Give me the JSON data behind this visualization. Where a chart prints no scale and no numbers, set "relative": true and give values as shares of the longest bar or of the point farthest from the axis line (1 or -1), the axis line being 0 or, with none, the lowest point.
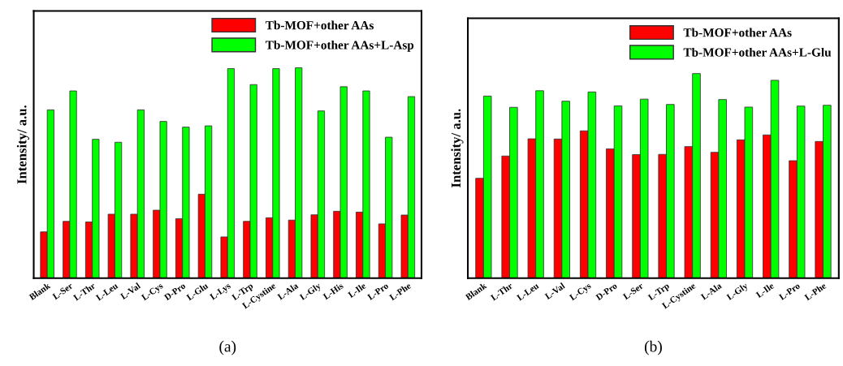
{
  "chart_data": [
    {
      "type": "bar",
      "relative": true,
      "ylabel": "Intensity/ a.u.",
      "legend": "top right",
      "annotations": [
        "(a)"
      ],
      "categories": [
        "Blank",
        "L-Ser",
        "L-Thr",
        "L-Leu",
        "L-Val",
        "L-Cys",
        "D-Pro",
        "L-Glu",
        "L-Lys",
        "L-Trp",
        "L-Cystine",
        "L-Ala",
        "L-Gly",
        "L-His",
        "L-Ile",
        "L-Pro",
        "L-Phe"
      ],
      "series": [
        {
          "name": "Tb-MOF+other AAs",
          "color": "#ff0000",
          "values": [
            0.22,
            0.27,
            0.267,
            0.304,
            0.304,
            0.323,
            0.283,
            0.399,
            0.196,
            0.27,
            0.287,
            0.276,
            0.301,
            0.318,
            0.314,
            0.258,
            0.3
          ]
        },
        {
          "name": "Tb-MOF+other AAs+L-Asp",
          "color": "#00ff00",
          "values": [
            0.8,
            0.89,
            0.66,
            0.646,
            0.8,
            0.745,
            0.718,
            0.724,
            0.996,
            0.92,
            0.996,
            1,
            0.795,
            0.91,
            0.89,
            0.67,
            0.863
          ]
        }
      ]
    },
    {
      "type": "bar",
      "relative": true,
      "ylabel": "Intensity/ a.u.",
      "legend": "top right",
      "annotations": [
        "(b)"
      ],
      "categories": [
        "Blank",
        "L-Thr",
        "L-Leu",
        "L-Val",
        "L-Cys",
        "D-Pro",
        "L-Ser",
        "L-Trp",
        "L-Cystine",
        "L-Ala",
        "L-Gly",
        "L-Ile",
        "L-Pro",
        "L-Phe"
      ],
      "series": [
        {
          "name": "Tb-MOF+other AAs",
          "color": "#ff0000",
          "values": [
            0.488,
            0.597,
            0.681,
            0.68,
            0.72,
            0.632,
            0.604,
            0.605,
            0.643,
            0.615,
            0.676,
            0.7,
            0.574,
            0.668
          ]
        },
        {
          "name": "Tb-MOF+other AAs+L-Glu",
          "color": "#00ff00",
          "values": [
            0.89,
            0.835,
            0.916,
            0.865,
            0.91,
            0.842,
            0.875,
            0.849,
            1,
            0.873,
            0.836,
            0.967,
            0.841,
            0.845
          ]
        }
      ]
    }
  ]
}
